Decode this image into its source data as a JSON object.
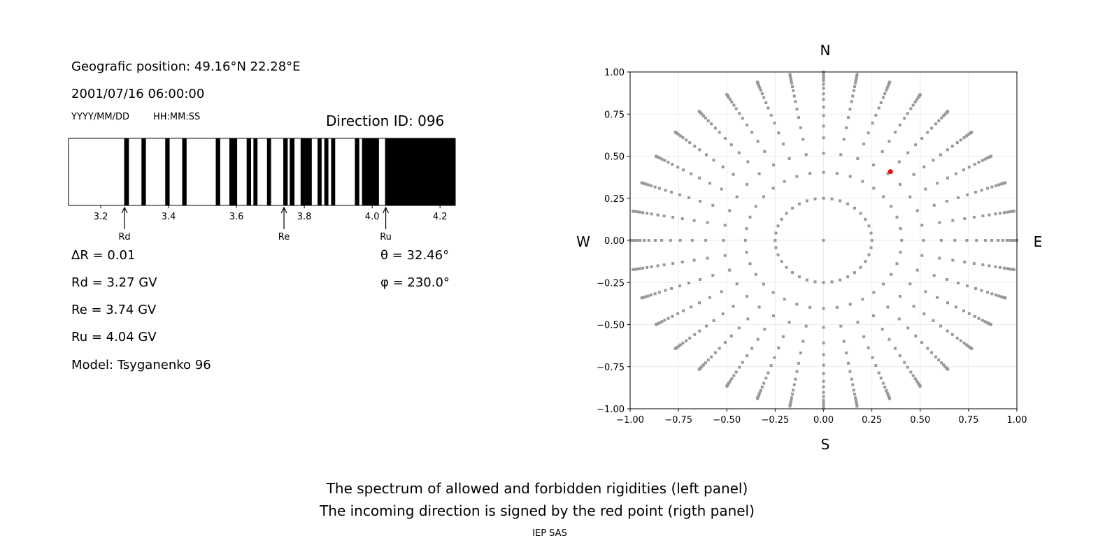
{
  "left_panel": {
    "position": "Geografic position: 49.16°N 22.28°E",
    "datetime": "2001/07/16 06:00:00",
    "date_format": "YYYY/MM/DD",
    "time_format": "HH:MM:SS",
    "direction_id": "Direction ID: 096",
    "delta_r": "ΔR = 0.01",
    "rd": "Rd = 3.27 GV",
    "re": "Re = 3.74 GV",
    "ru": "Ru = 4.04 GV",
    "model": "Model: Tsyganenko 96",
    "theta": "θ = 32.46°",
    "phi": "φ = 230.0°"
  },
  "right_panel": {
    "north": "N",
    "south": "S",
    "west": "W",
    "east": "E"
  },
  "caption": {
    "line1": "The spectrum of allowed and forbidden rigidities (left panel)",
    "line2": "The incoming direction is signed by the red point (rigth panel)",
    "credit": "IEP SAS"
  },
  "chart_data": [
    {
      "type": "bar",
      "description_kind": "rigidity spectrum (black = forbidden, white = allowed)",
      "xlim": [
        3.105,
        4.245
      ],
      "xticks": [
        "3.2",
        "3.4",
        "3.6",
        "3.8",
        "4.0",
        "4.2"
      ],
      "xtick_values": [
        3.2,
        3.4,
        3.6,
        3.8,
        4.0,
        4.2
      ],
      "forbidden_bands": [
        [
          3.269,
          3.283
        ],
        [
          3.32,
          3.333
        ],
        [
          3.39,
          3.403
        ],
        [
          3.44,
          3.453
        ],
        [
          3.539,
          3.552
        ],
        [
          3.579,
          3.602
        ],
        [
          3.63,
          3.643
        ],
        [
          3.65,
          3.662
        ],
        [
          3.69,
          3.702
        ],
        [
          3.738,
          3.751
        ],
        [
          3.757,
          3.771
        ],
        [
          3.789,
          3.822
        ],
        [
          3.839,
          3.851
        ],
        [
          3.859,
          3.871
        ],
        [
          3.879,
          3.891
        ],
        [
          3.949,
          3.962
        ],
        [
          3.97,
          4.02
        ],
        [
          4.038,
          4.245
        ]
      ],
      "markers": [
        {
          "label": "Rd",
          "value": 3.27
        },
        {
          "label": "Re",
          "value": 3.74
        },
        {
          "label": "Ru",
          "value": 4.04
        }
      ],
      "colors": {
        "forbidden": "#000000",
        "allowed": "#ffffff"
      }
    },
    {
      "type": "scatter",
      "xlim": [
        -1,
        1
      ],
      "ylim": [
        -1,
        1
      ],
      "grid": true,
      "xticks": [
        "−1.00",
        "−0.75",
        "−0.50",
        "−0.25",
        "0.00",
        "0.25",
        "0.50",
        "0.75",
        "1.00"
      ],
      "yticks": [
        "−1.00",
        "−0.75",
        "−0.50",
        "−0.25",
        "0.00",
        "0.25",
        "0.50",
        "0.75",
        "1.00"
      ],
      "tick_values": [
        -1,
        -0.75,
        -0.5,
        -0.25,
        0,
        0.25,
        0.5,
        0.75,
        1
      ],
      "grid_points": {
        "center": [
          0,
          0
        ],
        "inner_ring": {
          "r": 0.25,
          "azimuth_step_deg": 10
        },
        "rays": {
          "azimuth_step_deg": 10,
          "r": [
            0.404,
            0.517,
            0.609,
            0.679,
            0.741,
            0.791,
            0.837,
            0.87,
            0.903,
            0.927,
            0.949,
            0.965,
            0.978,
            0.988,
            0.995,
            1.0
          ]
        },
        "color": "#999999"
      },
      "highlight_point": {
        "x": 0.346,
        "y": 0.408,
        "color": "#ff0000"
      }
    }
  ]
}
